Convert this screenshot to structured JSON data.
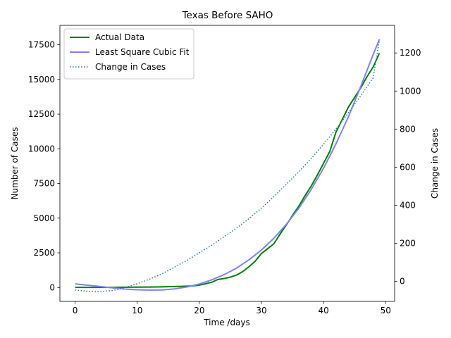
{
  "chart_data": {
    "type": "line",
    "title": "Texas Before SAHO",
    "xlabel": "Time /days",
    "ylabel": "Number of Cases",
    "y2label": "Change in Cases",
    "xlim": [
      -2.45,
      51.45
    ],
    "ylim": [
      -1000,
      18900
    ],
    "y2lim": [
      -105,
      1345
    ],
    "x_ticks": [
      0,
      10,
      20,
      30,
      40,
      50
    ],
    "x_tick_labels": [
      "0",
      "10",
      "20",
      "30",
      "40",
      "50"
    ],
    "y_ticks": [
      0,
      2500,
      5000,
      7500,
      10000,
      12500,
      15000,
      17500
    ],
    "y_tick_labels": [
      "0",
      "2500",
      "5000",
      "7500",
      "10000",
      "12500",
      "15000",
      "17500"
    ],
    "y2_ticks": [
      0,
      200,
      400,
      600,
      800,
      1000,
      1200
    ],
    "y2_tick_labels": [
      "0",
      "200",
      "400",
      "600",
      "800",
      "1000",
      "1200"
    ],
    "legend_position": "top-left",
    "grid": false,
    "series": [
      {
        "name": "Actual Data",
        "axis": "left",
        "color": "#008000",
        "style": "solid",
        "x": [
          0,
          2,
          4,
          6,
          8,
          10,
          12,
          14,
          16,
          18,
          19,
          20,
          21,
          22,
          23,
          24,
          25,
          26,
          27,
          28,
          29,
          30,
          31,
          32,
          33,
          34,
          35,
          36,
          37,
          38,
          39,
          40,
          41,
          42,
          43,
          44,
          45,
          46,
          47,
          48,
          49
        ],
        "values": [
          10,
          10,
          10,
          15,
          20,
          25,
          35,
          50,
          70,
          100,
          120,
          170,
          270,
          380,
          580,
          650,
          750,
          900,
          1150,
          1500,
          1900,
          2450,
          2800,
          3150,
          3850,
          4500,
          5200,
          5850,
          6600,
          7300,
          8100,
          8950,
          9800,
          11200,
          12100,
          13000,
          13700,
          14400,
          15200,
          15900,
          16900
        ]
      },
      {
        "name": "Least Square Cubic Fit",
        "axis": "left",
        "color": "#8080ff",
        "style": "solid",
        "x": [
          0,
          2,
          4,
          6,
          8,
          10,
          12,
          14,
          16,
          18,
          20,
          22,
          24,
          26,
          28,
          30,
          32,
          34,
          36,
          38,
          40,
          42,
          44,
          46,
          48,
          49
        ],
        "values": [
          260,
          170,
          70,
          -25,
          -110,
          -165,
          -190,
          -175,
          -100,
          40,
          250,
          550,
          930,
          1400,
          2000,
          2700,
          3550,
          4550,
          5700,
          7050,
          8600,
          10350,
          12300,
          14500,
          16800,
          17900
        ]
      },
      {
        "name": "Change in Cases",
        "axis": "right",
        "color": "#1f77b4",
        "style": "dotted",
        "x": [
          0,
          2,
          4,
          6,
          8,
          10,
          12,
          14,
          16,
          18,
          20,
          22,
          24,
          26,
          28,
          30,
          32,
          34,
          36,
          38,
          40,
          42,
          44,
          46,
          48,
          49
        ],
        "values": [
          -45,
          -52,
          -54,
          -48,
          -33,
          -12,
          12,
          40,
          75,
          110,
          150,
          190,
          235,
          280,
          330,
          385,
          445,
          510,
          575,
          645,
          720,
          800,
          885,
          975,
          1070,
          1270
        ]
      }
    ]
  }
}
